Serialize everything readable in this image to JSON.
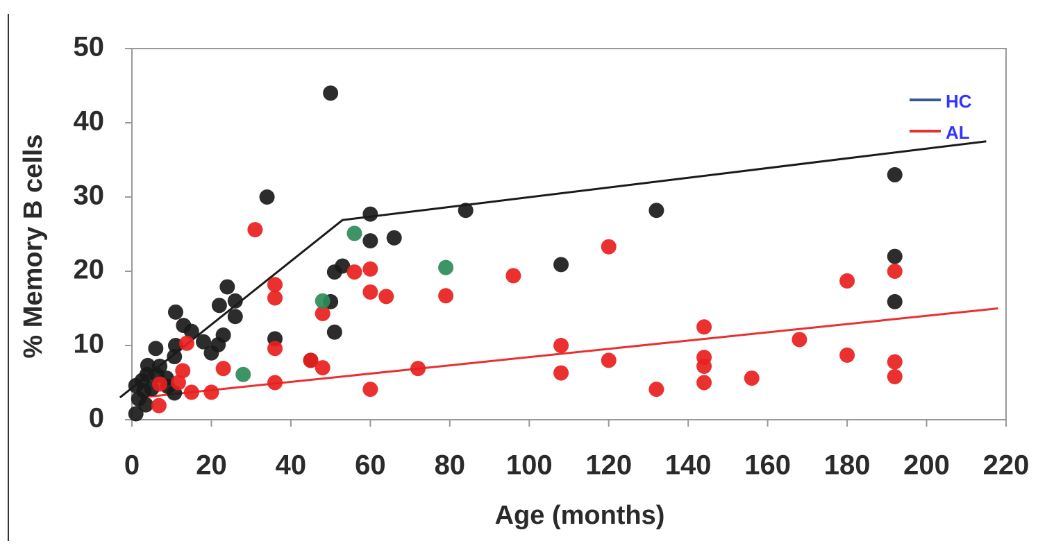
{
  "chart_data": {
    "type": "scatter",
    "x_label": "Age (months)",
    "y_label": "% Memory B cells",
    "xlim": [
      0,
      220
    ],
    "xticks": [
      0,
      20,
      40,
      60,
      80,
      100,
      120,
      140,
      160,
      180,
      200,
      220
    ],
    "ylim": [
      0,
      50
    ],
    "yticks": [
      0,
      10,
      20,
      30,
      40,
      50
    ],
    "series": [
      {
        "name": "HC",
        "color": "#1a1a1a",
        "line_color": "#3a5a8c",
        "x": [
          1,
          50,
          34,
          60,
          84,
          132,
          192,
          60,
          66,
          53,
          51,
          108,
          192,
          192,
          50,
          51,
          36,
          45,
          24,
          26,
          22,
          26,
          11,
          13,
          15,
          23,
          18,
          21.7,
          20,
          11,
          10.7,
          6,
          1,
          2.6,
          4,
          3.8,
          7,
          8.7,
          5,
          1.7,
          3,
          6.3,
          3.5,
          10.7,
          9
        ],
        "values": [
          0.8,
          44,
          30,
          27.7,
          28.2,
          28.2,
          33,
          24.1,
          24.5,
          20.7,
          19.9,
          20.9,
          22,
          15.9,
          15.9,
          11.8,
          10.9,
          8,
          17.9,
          16,
          15.4,
          13.9,
          14.5,
          12.7,
          11.9,
          11.4,
          10.5,
          10.1,
          9,
          10,
          8.5,
          9.6,
          4.6,
          5.3,
          7.3,
          6.1,
          7.2,
          5.6,
          4.2,
          2.8,
          3.9,
          6,
          2,
          3.6,
          4.5
        ]
      },
      {
        "name": "AL",
        "color": "#e8201e",
        "line_color": "#e83030",
        "x": [
          31,
          36,
          36,
          36,
          36,
          56,
          60,
          60,
          64,
          79,
          96,
          120,
          180,
          192,
          48,
          48,
          45,
          72,
          60,
          108,
          108,
          120,
          132,
          144,
          144,
          144,
          144,
          156,
          168,
          180,
          192,
          192,
          13.8,
          12.8,
          11.7,
          15,
          20,
          23,
          7,
          6.8
        ],
        "values": [
          25.6,
          18.2,
          16.4,
          9.6,
          5,
          19.9,
          20.3,
          17.2,
          16.6,
          16.7,
          19.4,
          23.3,
          18.7,
          20,
          14.3,
          7,
          8,
          6.9,
          4.1,
          10,
          6.3,
          8,
          4.1,
          12.5,
          8.4,
          7.2,
          5,
          5.6,
          10.8,
          8.7,
          7.8,
          5.8,
          10.3,
          6.6,
          5,
          3.7,
          3.7,
          6.9,
          4.8,
          1.9
        ]
      },
      {
        "color": "#2e8b57",
        "x": [
          56,
          79,
          48,
          28
        ],
        "values": [
          25.1,
          20.5,
          16,
          6.1
        ]
      }
    ],
    "fits": [
      {
        "color": "#1a1a1a",
        "x": [
          -3,
          53,
          215
        ],
        "values": [
          3,
          26.9,
          37.5
        ]
      },
      {
        "color": "#e83030",
        "x": [
          2.3,
          218
        ],
        "values": [
          3,
          15
        ]
      }
    ]
  }
}
